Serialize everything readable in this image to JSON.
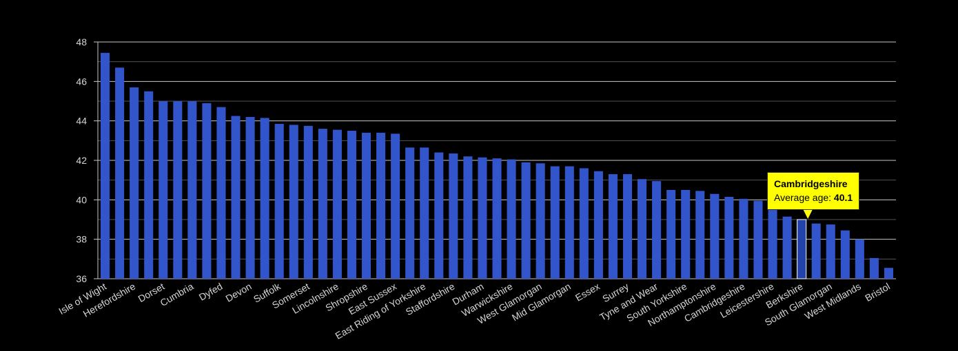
{
  "chart_data": {
    "type": "bar",
    "title": "",
    "xlabel": "",
    "ylabel": "",
    "ylim": [
      36,
      48
    ],
    "yticks": [
      36,
      38,
      40,
      42,
      44,
      46,
      48
    ],
    "grid": true,
    "categories": [
      "Isle of Wight",
      "",
      "Herefordshire",
      "",
      "Dorset",
      "",
      "Cumbria",
      "",
      "Dyfed",
      "",
      "Devon",
      "",
      "Suffolk",
      "",
      "Somerset",
      "",
      "Lincolnshire",
      "",
      "Shropshire",
      "",
      "East Sussex",
      "",
      "East Riding of Yorkshire",
      "",
      "Staffordshire",
      "",
      "Durham",
      "",
      "Warwickshire",
      "",
      "West Glamorgan",
      "",
      "Mid Glamorgan",
      "",
      "Essex",
      "",
      "Surrey",
      "",
      "Tyne and Wear",
      "",
      "South Yorkshire",
      "",
      "Northamptonshire",
      "",
      "Cambridgeshire",
      "",
      "Leicestershire",
      "",
      "Berkshire",
      "",
      "South Glamorgan",
      "",
      "West Midlands",
      "",
      "Bristol"
    ],
    "values": [
      47.45,
      46.7,
      45.7,
      45.5,
      45.0,
      45.0,
      45.0,
      44.9,
      44.7,
      44.25,
      44.2,
      44.15,
      43.85,
      43.8,
      43.75,
      43.6,
      43.55,
      43.5,
      43.4,
      43.4,
      43.35,
      42.65,
      42.65,
      42.4,
      42.35,
      42.2,
      42.15,
      42.1,
      42.05,
      41.9,
      41.85,
      41.7,
      41.7,
      41.6,
      41.45,
      41.3,
      41.3,
      41.05,
      40.95,
      40.5,
      40.5,
      40.45,
      40.3,
      40.15,
      40.05,
      39.95,
      39.95,
      39.15,
      39.0,
      38.8,
      38.75,
      38.45,
      38.0,
      37.05,
      36.55
    ],
    "bar_color": "#3355cc",
    "highlight_color": "#2244aa",
    "highlight_index": 48,
    "tooltip": {
      "title": "Cambridgeshire",
      "label": "Average age:",
      "value": "40.1"
    }
  }
}
